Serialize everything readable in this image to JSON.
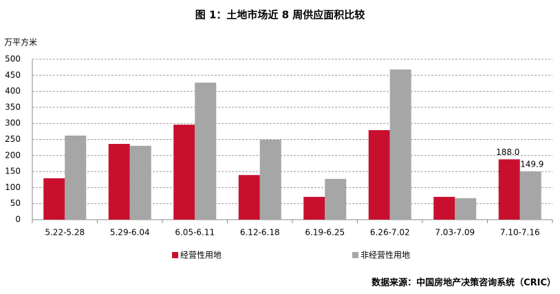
{
  "chart_data": {
    "type": "bar",
    "title": "图 1：土地市场近 8 周供应面积比较",
    "y_label": "万平方米",
    "source": "数据来源：中国房地产决策咨询系统（CRIC）",
    "categories": [
      "5.22-5.28",
      "5.29-6.04",
      "6.05-6.11",
      "6.12-6.18",
      "6.19-6.25",
      "6.26-7.02",
      "7.03-7.09",
      "7.10-7.16"
    ],
    "series": [
      {
        "name": "经营性用地",
        "color": "#c8102e",
        "values": [
          129,
          236,
          296,
          139,
          71,
          279,
          71,
          188
        ],
        "value_labels": [
          null,
          null,
          null,
          null,
          null,
          null,
          null,
          "188.0"
        ]
      },
      {
        "name": "非经营性用地",
        "color": "#a6a6a6",
        "values": [
          262,
          230,
          427,
          249,
          127,
          468,
          67,
          149.9
        ],
        "value_labels": [
          null,
          null,
          null,
          null,
          null,
          null,
          null,
          "149.9"
        ]
      }
    ],
    "ylim": [
      0,
      500
    ],
    "yticks": [
      0,
      50,
      100,
      150,
      200,
      250,
      300,
      350,
      400,
      450,
      500
    ],
    "grid": true
  }
}
